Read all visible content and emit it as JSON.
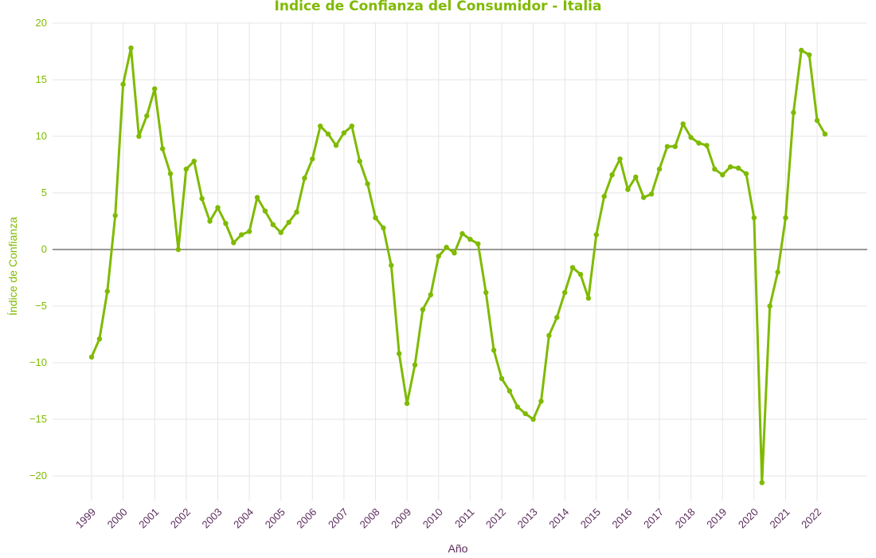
{
  "chart_data": {
    "type": "line",
    "title": "Índice de Confianza del Consumidor - Italia",
    "xlabel": "Año",
    "ylabel": "Índice de Confianza",
    "ylim": [
      -22,
      20
    ],
    "yticks": [
      20,
      15,
      10,
      5,
      0,
      -5,
      -10,
      -15,
      -20
    ],
    "ytick_labels": [
      "20",
      "15",
      "10",
      "5",
      "0",
      "−5",
      "−10",
      "−15",
      "−20"
    ],
    "xticks": [
      "1999",
      "2000",
      "2001",
      "2002",
      "2003",
      "2004",
      "2005",
      "2006",
      "2007",
      "2008",
      "2009",
      "2010",
      "2011",
      "2012",
      "2013",
      "2014",
      "2015",
      "2016",
      "2017",
      "2018",
      "2019",
      "2020",
      "2021",
      "2022"
    ],
    "grid": true,
    "zero_line": true,
    "colors": {
      "line": "#7fba00",
      "title": "#7fba00",
      "tick": "#7fba00",
      "xtick": "#5a2a5a",
      "grid": "#e6e6e6",
      "zero": "#333333"
    },
    "series": [
      {
        "x": [
          "1999-01",
          "1999-04",
          "1999-07",
          "1999-10",
          "2000-01",
          "2000-04",
          "2000-07",
          "2000-10",
          "2001-01",
          "2001-04",
          "2001-07",
          "2001-10",
          "2002-01",
          "2002-04",
          "2002-07",
          "2002-10",
          "2003-01",
          "2003-04",
          "2003-07",
          "2003-10",
          "2004-01",
          "2004-04",
          "2004-07",
          "2004-10",
          "2005-01",
          "2005-04",
          "2005-07",
          "2005-10",
          "2006-01",
          "2006-04",
          "2006-07",
          "2006-10",
          "2007-01",
          "2007-04",
          "2007-07",
          "2007-10",
          "2008-01",
          "2008-04",
          "2008-07",
          "2008-10",
          "2009-01",
          "2009-04",
          "2009-07",
          "2009-10",
          "2010-01",
          "2010-04",
          "2010-07",
          "2010-10",
          "2011-01",
          "2011-04",
          "2011-07",
          "2011-10",
          "2012-01",
          "2012-04",
          "2012-07",
          "2012-10",
          "2013-01",
          "2013-04",
          "2013-07",
          "2013-10",
          "2014-01",
          "2014-04",
          "2014-07",
          "2014-10",
          "2015-01",
          "2015-04",
          "2015-07",
          "2015-10",
          "2016-01",
          "2016-04",
          "2016-07",
          "2016-10",
          "2017-01",
          "2017-04",
          "2017-07",
          "2017-10",
          "2018-01",
          "2018-04",
          "2018-07",
          "2018-10",
          "2019-01",
          "2019-04",
          "2019-07",
          "2019-10",
          "2020-01",
          "2020-04",
          "2020-07",
          "2020-10",
          "2021-01",
          "2021-04",
          "2021-07",
          "2021-10",
          "2022-01",
          "2022-04"
        ],
        "values": [
          -9.5,
          -7.9,
          -3.7,
          3.0,
          14.6,
          17.8,
          10.0,
          11.8,
          14.2,
          8.9,
          6.7,
          0.0,
          7.1,
          7.8,
          4.5,
          2.5,
          3.7,
          2.3,
          0.6,
          1.3,
          1.6,
          4.6,
          3.4,
          2.2,
          1.5,
          2.4,
          3.3,
          6.3,
          8.0,
          10.9,
          10.2,
          9.2,
          10.3,
          10.9,
          7.8,
          5.8,
          2.8,
          1.9,
          -1.4,
          -9.2,
          -13.6,
          -10.2,
          -5.3,
          -4.0,
          -0.6,
          0.2,
          -0.3,
          1.4,
          0.9,
          0.5,
          -3.8,
          -8.9,
          -11.4,
          -12.5,
          -13.9,
          -14.5,
          -15.0,
          -13.4,
          -7.6,
          -6.0,
          -3.8,
          -1.6,
          -2.2,
          -4.3,
          1.3,
          4.7,
          6.6,
          8.0,
          5.3,
          6.4,
          4.6,
          4.9,
          7.1,
          9.1,
          9.1,
          11.1,
          9.9,
          9.4,
          9.2,
          7.1,
          6.6,
          7.3,
          7.2,
          6.7,
          2.8,
          -20.6,
          -5.0,
          -2.0,
          2.8,
          12.1,
          17.6,
          17.2,
          11.4,
          10.2
        ]
      }
    ]
  }
}
